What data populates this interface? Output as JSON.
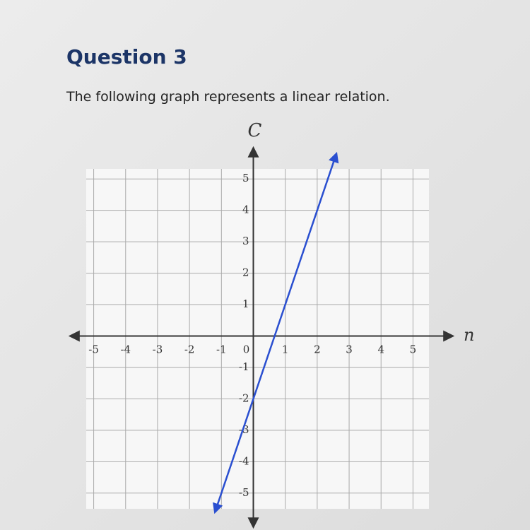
{
  "question": {
    "title": "Question 3",
    "prompt": "The following graph represents a linear relation."
  },
  "chart_data": {
    "type": "line",
    "xlabel": "n",
    "ylabel": "C",
    "x": [
      -1.2,
      2.6
    ],
    "series": [
      {
        "color": "#2a4fd0",
        "values": [
          -5.6,
          5.8
        ]
      }
    ],
    "xlim": [
      -5.5,
      5.5
    ],
    "ylim": [
      -5.5,
      5.5
    ],
    "xticks": [
      -5,
      -4,
      -3,
      -2,
      -1,
      0,
      1,
      2,
      3,
      4,
      5
    ],
    "yticks": [
      -5,
      -4,
      -3,
      -2,
      -1,
      1,
      2,
      3,
      4,
      5
    ],
    "grid": true
  }
}
